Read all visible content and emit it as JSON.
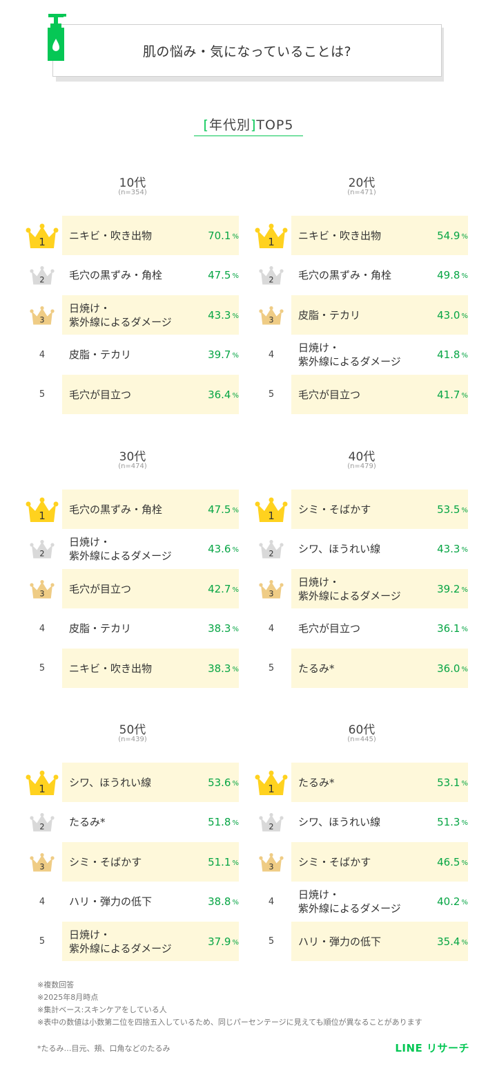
{
  "title": "肌の悩み・気になっていることは?",
  "subtitle": {
    "open": "[",
    "text": "年代別",
    "close": "]",
    "tail": "TOP5"
  },
  "colors": {
    "accent": "#06c755",
    "highlight": "#fef8da",
    "gold": "#ffd21f",
    "silver": "#d9d9d9",
    "bronze": "#efcc85"
  },
  "groups": [
    {
      "age": "10代",
      "n": "(n=354)",
      "rows": [
        {
          "rank": "1",
          "label": "ニキビ・吹き出物",
          "value": "70.1",
          "unit": "%"
        },
        {
          "rank": "2",
          "label": "毛穴の黒ずみ・角栓",
          "value": "47.5",
          "unit": "%"
        },
        {
          "rank": "3",
          "label": "日焼け・\n紫外線によるダメージ",
          "value": "43.3",
          "unit": "%"
        },
        {
          "rank": "4",
          "label": "皮脂・テカリ",
          "value": "39.7",
          "unit": "%"
        },
        {
          "rank": "5",
          "label": "毛穴が目立つ",
          "value": "36.4",
          "unit": "%"
        }
      ]
    },
    {
      "age": "20代",
      "n": "(n=471)",
      "rows": [
        {
          "rank": "1",
          "label": "ニキビ・吹き出物",
          "value": "54.9",
          "unit": "%"
        },
        {
          "rank": "2",
          "label": "毛穴の黒ずみ・角栓",
          "value": "49.8",
          "unit": "%"
        },
        {
          "rank": "3",
          "label": "皮脂・テカリ",
          "value": "43.0",
          "unit": "%"
        },
        {
          "rank": "4",
          "label": "日焼け・\n紫外線によるダメージ",
          "value": "41.8",
          "unit": "%"
        },
        {
          "rank": "5",
          "label": "毛穴が目立つ",
          "value": "41.7",
          "unit": "%"
        }
      ]
    },
    {
      "age": "30代",
      "n": "(n=474)",
      "rows": [
        {
          "rank": "1",
          "label": "毛穴の黒ずみ・角栓",
          "value": "47.5",
          "unit": "%"
        },
        {
          "rank": "2",
          "label": "日焼け・\n紫外線によるダメージ",
          "value": "43.6",
          "unit": "%"
        },
        {
          "rank": "3",
          "label": "毛穴が目立つ",
          "value": "42.7",
          "unit": "%"
        },
        {
          "rank": "4",
          "label": "皮脂・テカリ",
          "value": "38.3",
          "unit": "%"
        },
        {
          "rank": "5",
          "label": "ニキビ・吹き出物",
          "value": "38.3",
          "unit": "%"
        }
      ]
    },
    {
      "age": "40代",
      "n": "(n=479)",
      "rows": [
        {
          "rank": "1",
          "label": "シミ・そばかす",
          "value": "53.5",
          "unit": "%"
        },
        {
          "rank": "2",
          "label": "シワ、ほうれい線",
          "value": "43.3",
          "unit": "%"
        },
        {
          "rank": "3",
          "label": "日焼け・\n紫外線によるダメージ",
          "value": "39.2",
          "unit": "%"
        },
        {
          "rank": "4",
          "label": "毛穴が目立つ",
          "value": "36.1",
          "unit": "%"
        },
        {
          "rank": "5",
          "label": "たるみ*",
          "value": "36.0",
          "unit": "%"
        }
      ]
    },
    {
      "age": "50代",
      "n": "(n=439)",
      "rows": [
        {
          "rank": "1",
          "label": "シワ、ほうれい線",
          "value": "53.6",
          "unit": "%"
        },
        {
          "rank": "2",
          "label": "たるみ*",
          "value": "51.8",
          "unit": "%"
        },
        {
          "rank": "3",
          "label": "シミ・そばかす",
          "value": "51.1",
          "unit": "%"
        },
        {
          "rank": "4",
          "label": "ハリ・弾力の低下",
          "value": "38.8",
          "unit": "%"
        },
        {
          "rank": "5",
          "label": "日焼け・\n紫外線によるダメージ",
          "value": "37.9",
          "unit": "%"
        }
      ]
    },
    {
      "age": "60代",
      "n": "(n=445)",
      "rows": [
        {
          "rank": "1",
          "label": "たるみ*",
          "value": "53.1",
          "unit": "%"
        },
        {
          "rank": "2",
          "label": "シワ、ほうれい線",
          "value": "51.3",
          "unit": "%"
        },
        {
          "rank": "3",
          "label": "シミ・そばかす",
          "value": "46.5",
          "unit": "%"
        },
        {
          "rank": "4",
          "label": "日焼け・\n紫外線によるダメージ",
          "value": "40.2",
          "unit": "%"
        },
        {
          "rank": "5",
          "label": "ハリ・弾力の低下",
          "value": "35.4",
          "unit": "%"
        }
      ]
    }
  ],
  "notes": [
    "※複数回答",
    "※2025年8月時点",
    "※集計ベース:スキンケアをしている人",
    "※表中の数値は小数第二位を四捨五入しているため、同じパーセンテージに見えても順位が異なることがあります"
  ],
  "footnote": "*たるみ…目元、頬、口角などのたるみ",
  "logo": "LINE リサーチ"
}
